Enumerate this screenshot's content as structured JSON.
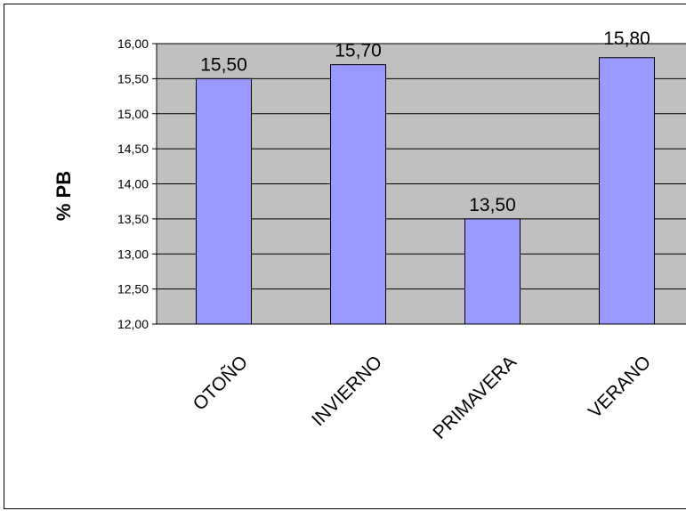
{
  "chart_data": {
    "type": "bar",
    "categories": [
      "OTOÑO",
      "INVIERNO",
      "PRIMAVERA",
      "VERANO"
    ],
    "values": [
      15.5,
      15.7,
      13.5,
      15.8
    ],
    "value_labels": [
      "15,50",
      "15,70",
      "13,50",
      "15,80"
    ],
    "ylabel": "% PB",
    "xlabel": "",
    "ylim": [
      12,
      16
    ],
    "yticks": [
      16,
      15.5,
      15,
      14.5,
      14,
      13.5,
      13,
      12.5,
      12
    ],
    "ytick_labels": [
      "16,00",
      "15,50",
      "15,00",
      "14,50",
      "14,00",
      "13,50",
      "13,00",
      "12,50",
      "12,00"
    ],
    "grid": true,
    "legend": "none",
    "colors": {
      "bar": "#9999ff",
      "plot_background": "#c0c0c0",
      "gridline": "#000000"
    }
  }
}
